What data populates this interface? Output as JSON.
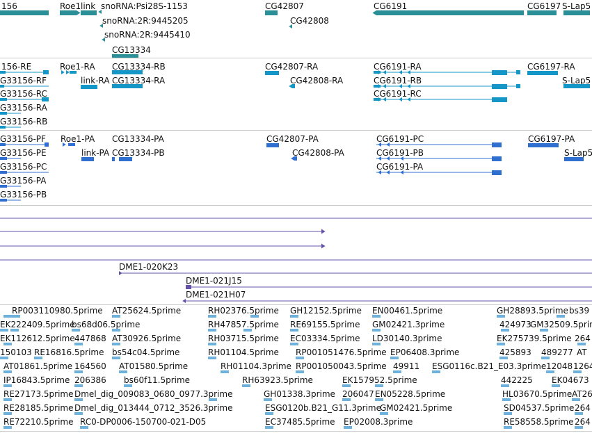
{
  "colors": {
    "gene": "#2a8f97",
    "transcript_cdna": "#1497c7",
    "transcript_protein": "#2f6fd0",
    "clone": "#6652a8",
    "est": "#6fb1dd",
    "separator": "#c8c8c8"
  },
  "tracks": {
    "genes": {
      "labels": [
        "156",
        "Roe1",
        "link",
        "snoRNA:Psi28S-1153",
        "snoRNA:2R:9445205",
        "snoRNA:2R:9445410",
        "CG13334",
        "CG42807",
        "CG42808",
        "CG6191",
        "CG6197",
        "S-Lap5"
      ]
    },
    "transcripts_rna": {
      "labels": [
        "156-RE",
        "G33156-RF",
        "G33156-RC",
        "G33156-RA",
        "G33156-RB",
        "Roe1-RA",
        "link-RA",
        "CG13334-RB",
        "CG13334-RA",
        "CG42807-RA",
        "CG42808-RA",
        "CG6191-RA",
        "CG6191-RB",
        "CG6191-RC",
        "CG6197-RA",
        "S-Lap5"
      ]
    },
    "transcripts_protein": {
      "labels": [
        "G33156-PF",
        "G33156-PE",
        "G33156-PC",
        "G33156-PA",
        "G33156-PB",
        "Roe1-PA",
        "link-PA",
        "CG13334-PA",
        "CG13334-PB",
        "CG42807-PA",
        "CG42808-PA",
        "CG6191-PC",
        "CG6191-PB",
        "CG6191-PA",
        "CG6197-PA",
        "S-Lap5"
      ]
    },
    "clones": {
      "labels": [
        "DME1-020K23",
        "DME1-021J15",
        "DME1-021H07"
      ]
    },
    "ests": {
      "labels": [
        "RP003110980.5prime",
        "AT25624.5prime",
        "RH02376.5prime",
        "GH12152.5prime",
        "EN00461.5prime",
        "GH28893.5prime",
        "bs39",
        "EK222409.5prime",
        "bs68d06.5prime",
        "RH47857.5prime",
        "RE69155.5prime",
        "GM02421.3prime",
        "424973",
        "GM32509.5prime",
        "EK112612.5prime",
        "447868",
        "AT30926.5prime",
        "RH03715.5prime",
        "EC03334.5prime",
        "LD30140.3prime",
        "EK275739.5prime",
        "264",
        "150103",
        "RE16816.5prime",
        "bs54c04.5prime",
        "RH01104.5prime",
        "RP001051476.5prime",
        "EP06408.3prime",
        "425893",
        "489277",
        "AT",
        "AT01861.5prime",
        "164560",
        "AT01580.5prime",
        "RH01104.3prime",
        "RP001050043.5prime",
        "49911",
        "ESG0116c.B21_E03.3prime",
        "12048",
        "1264",
        "IP16843.5prime",
        "206386",
        "bs60f11.5prime",
        "RH63923.5prime",
        "EK157952.5prime",
        "442225",
        "EK04673",
        "RE27173.5prime",
        "Dmel_dig_009083_0680_0977.3prime",
        "GH01338.3prime",
        "206047",
        "EN05228.5prime",
        "HL03670.5prime",
        "AT26",
        "RE28185.5prime",
        "Dmel_dig_013444_0712_3526.3prime",
        "ESG0120b.B21_G11.3prime",
        "GM02421.5prime",
        "SD04537.5prime",
        "264",
        "RE72210.5prime",
        "RC0-DP0006-150700-021-D05",
        "EC37485.5prime",
        "EP02008.3prime",
        "RE58558.5prime",
        "264"
      ]
    }
  }
}
